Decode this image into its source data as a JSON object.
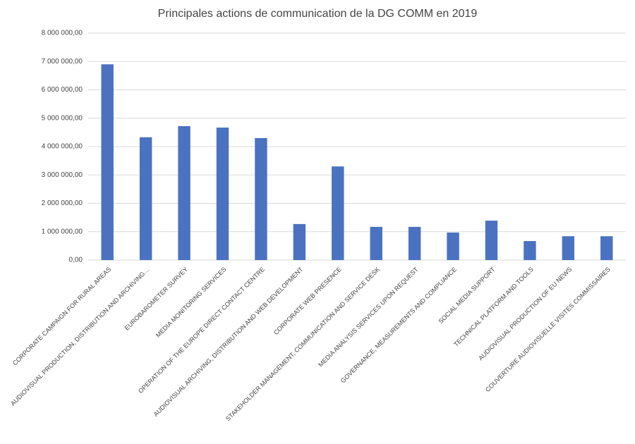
{
  "chart_data": {
    "type": "bar",
    "title": "Principales actions de communication de la DG COMM en 2019",
    "categories": [
      "CORPORATE CAMPAIGN FOR RURAL AREAS",
      "AUDIOVISUAL PRODUCTION, DISTRIBUTION AND ARCHIVING…",
      "EUROBAROMETER SURVEY",
      "MEDIA MONITORING SERVICES",
      "OPERATION OF THE EUROPE DIRECT CONTACT CENTRE",
      "AUDIOVISUAL ARCHIVING, DISTRIBUTION AND WEB DEVELOPMENT",
      "CORPORATE WEB PRESENCE",
      "STAKEHOLDER MANAGEMENT, COMMUNICATION AND SERVICE DESK",
      "MEDIA ANALYSIS SERVICES UPON REQUEST",
      "GOVERNANCE, MEASUREMENTS AND COMPLIANCE",
      "SOCIAL MEDIA SUPPORT",
      "TECHNICAL PLATFORM AND TOOLS",
      "AUDIOVISUAL PRODUCTION OF EU NEWS",
      "COUVERTURE AUDIOVISUELLE VISITES COMMISSAIRES"
    ],
    "values": [
      6900000,
      4330000,
      4720000,
      4670000,
      4300000,
      1270000,
      3300000,
      1170000,
      1170000,
      970000,
      1390000,
      670000,
      840000,
      840000
    ],
    "color": "#4a72c0",
    "ylim": [
      0,
      8000000
    ],
    "yticks": [
      {
        "value": 0,
        "label": "0,00"
      },
      {
        "value": 1000000,
        "label": "1 000 000,00"
      },
      {
        "value": 2000000,
        "label": "2 000 000,00"
      },
      {
        "value": 3000000,
        "label": "3 000 000,00"
      },
      {
        "value": 4000000,
        "label": "4 000 000,00"
      },
      {
        "value": 5000000,
        "label": "5 000 000,00"
      },
      {
        "value": 6000000,
        "label": "6 000 000,00"
      },
      {
        "value": 7000000,
        "label": "7 000 000,00"
      },
      {
        "value": 8000000,
        "label": "8 000 000,00"
      }
    ],
    "grid": true
  }
}
